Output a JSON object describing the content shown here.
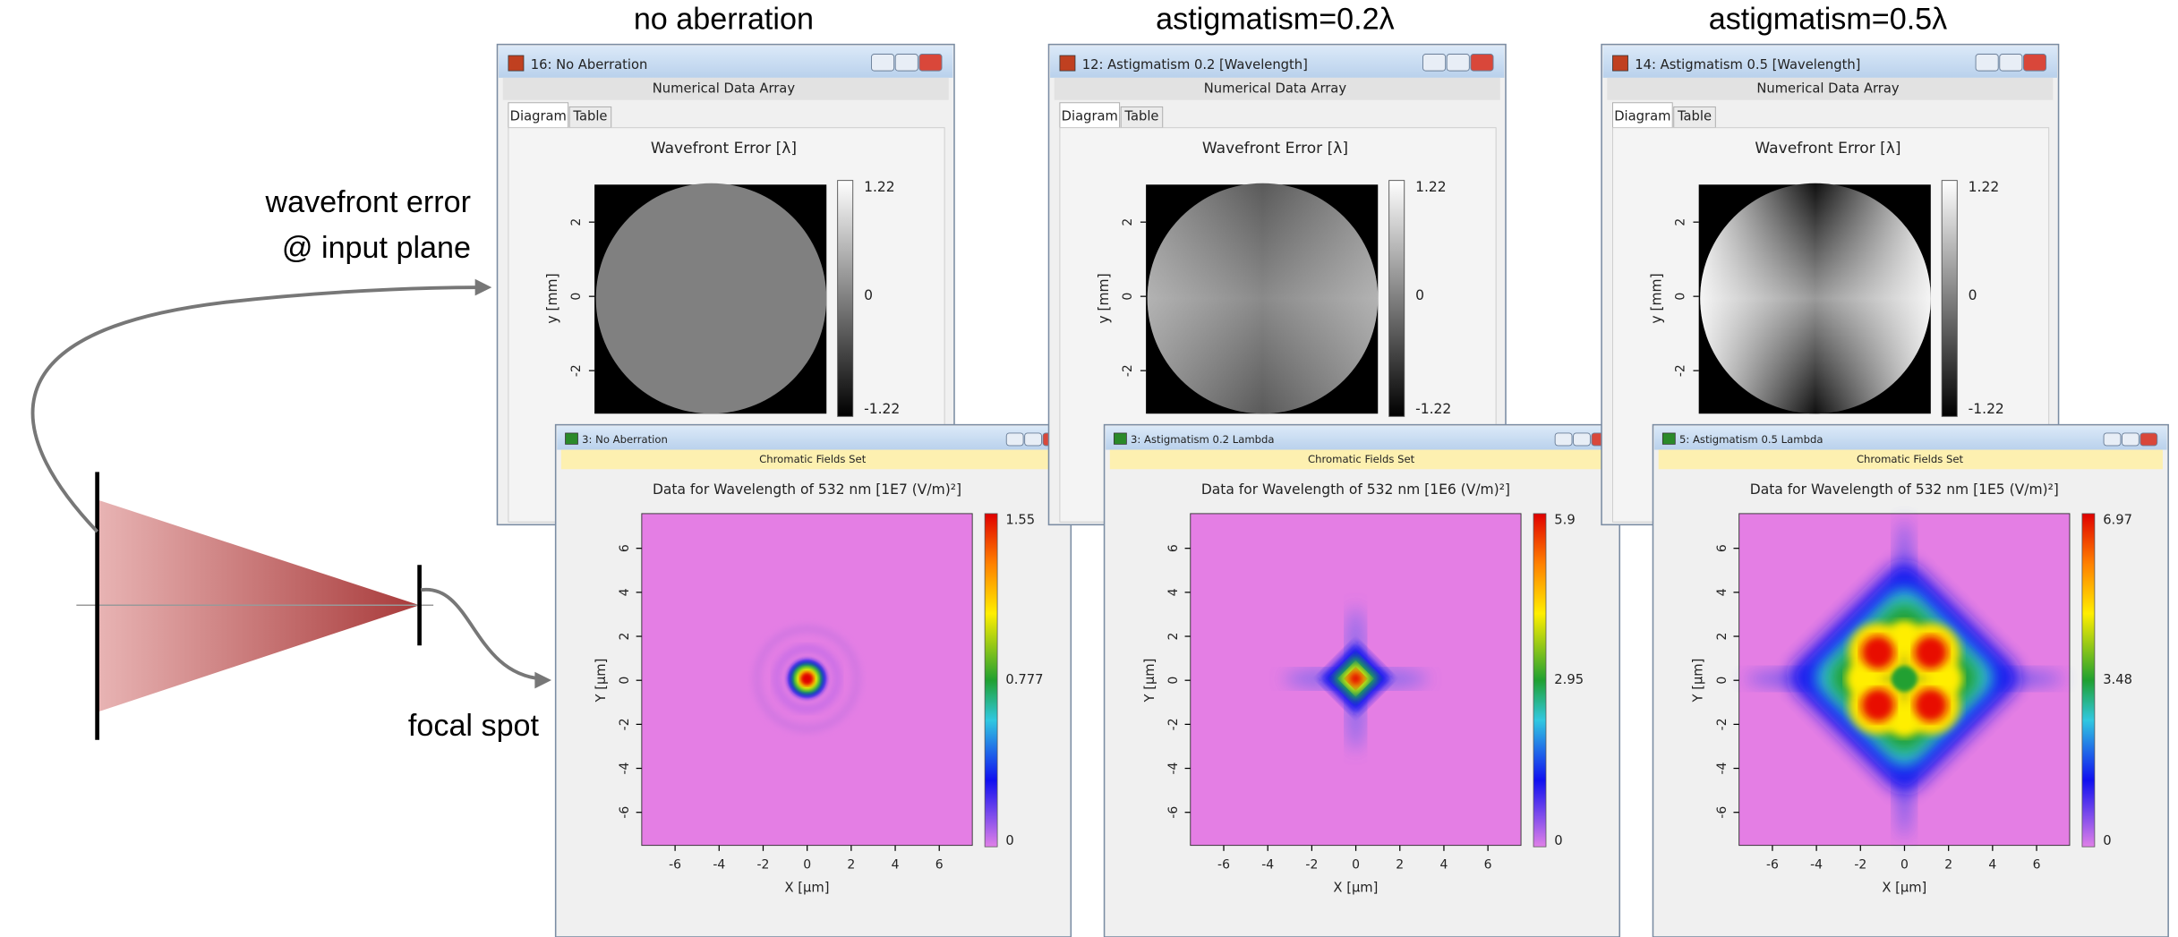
{
  "annotations": {
    "wavefront_label": [
      "wavefront error",
      "@ input plane"
    ],
    "focal_label": "focal spot"
  },
  "panels": [
    {
      "heading": "no aberration",
      "wavefront_window": {
        "title": "16: No Aberration",
        "subtitle": "Numerical Data Array",
        "tabs": [
          "Diagram",
          "Table"
        ],
        "plot_title": "Wavefront Error [λ]",
        "y_label": "y [mm]",
        "yticks": [
          2,
          0,
          -2
        ],
        "colorbar_ticks": [
          1.22,
          0,
          -1.22
        ]
      },
      "field_window": {
        "title": "3: No Aberration",
        "subtitle": "Chromatic Fields Set",
        "plot_title": "Data for Wavelength of 532 nm  [1E7 (V/m)²]",
        "x_label": "X [µm]",
        "y_label": "Y [µm]",
        "xticks": [
          -6,
          -4,
          -2,
          0,
          2,
          4,
          6
        ],
        "yticks": [
          6,
          4,
          2,
          0,
          -2,
          -4,
          -6
        ],
        "colorbar_ticks": [
          1.55,
          0.777,
          0
        ]
      }
    },
    {
      "heading": "astigmatism=0.2λ",
      "wavefront_window": {
        "title": "12: Astigmatism 0.2 [Wavelength]",
        "subtitle": "Numerical Data Array",
        "tabs": [
          "Diagram",
          "Table"
        ],
        "plot_title": "Wavefront Error [λ]",
        "y_label": "y [mm]",
        "yticks": [
          2,
          0,
          -2
        ],
        "colorbar_ticks": [
          1.22,
          0,
          -1.22
        ]
      },
      "field_window": {
        "title": "3: Astigmatism 0.2 Lambda",
        "subtitle": "Chromatic Fields Set",
        "plot_title": "Data for Wavelength of 532 nm  [1E6 (V/m)²]",
        "x_label": "X [µm]",
        "y_label": "Y [µm]",
        "xticks": [
          -6,
          -4,
          -2,
          0,
          2,
          4,
          6
        ],
        "yticks": [
          6,
          4,
          2,
          0,
          -2,
          -4,
          -6
        ],
        "colorbar_ticks": [
          5.9,
          2.95,
          0
        ]
      }
    },
    {
      "heading": "astigmatism=0.5λ",
      "wavefront_window": {
        "title": "14: Astigmatism 0.5 [Wavelength]",
        "subtitle": "Numerical Data Array",
        "tabs": [
          "Diagram",
          "Table"
        ],
        "plot_title": "Wavefront Error [λ]",
        "y_label": "y [mm]",
        "yticks": [
          2,
          0,
          -2
        ],
        "colorbar_ticks": [
          1.22,
          0,
          -1.22
        ]
      },
      "field_window": {
        "title": "5: Astigmatism 0.5 Lambda",
        "subtitle": "Chromatic Fields Set",
        "plot_title": "Data for Wavelength of 532 nm  [1E5 (V/m)²]",
        "x_label": "X [µm]",
        "y_label": "Y [µm]",
        "xticks": [
          -6,
          -4,
          -2,
          0,
          2,
          4,
          6
        ],
        "yticks": [
          6,
          4,
          2,
          0,
          -2,
          -4,
          -6
        ],
        "colorbar_ticks": [
          6.97,
          3.48,
          0
        ]
      }
    }
  ]
}
